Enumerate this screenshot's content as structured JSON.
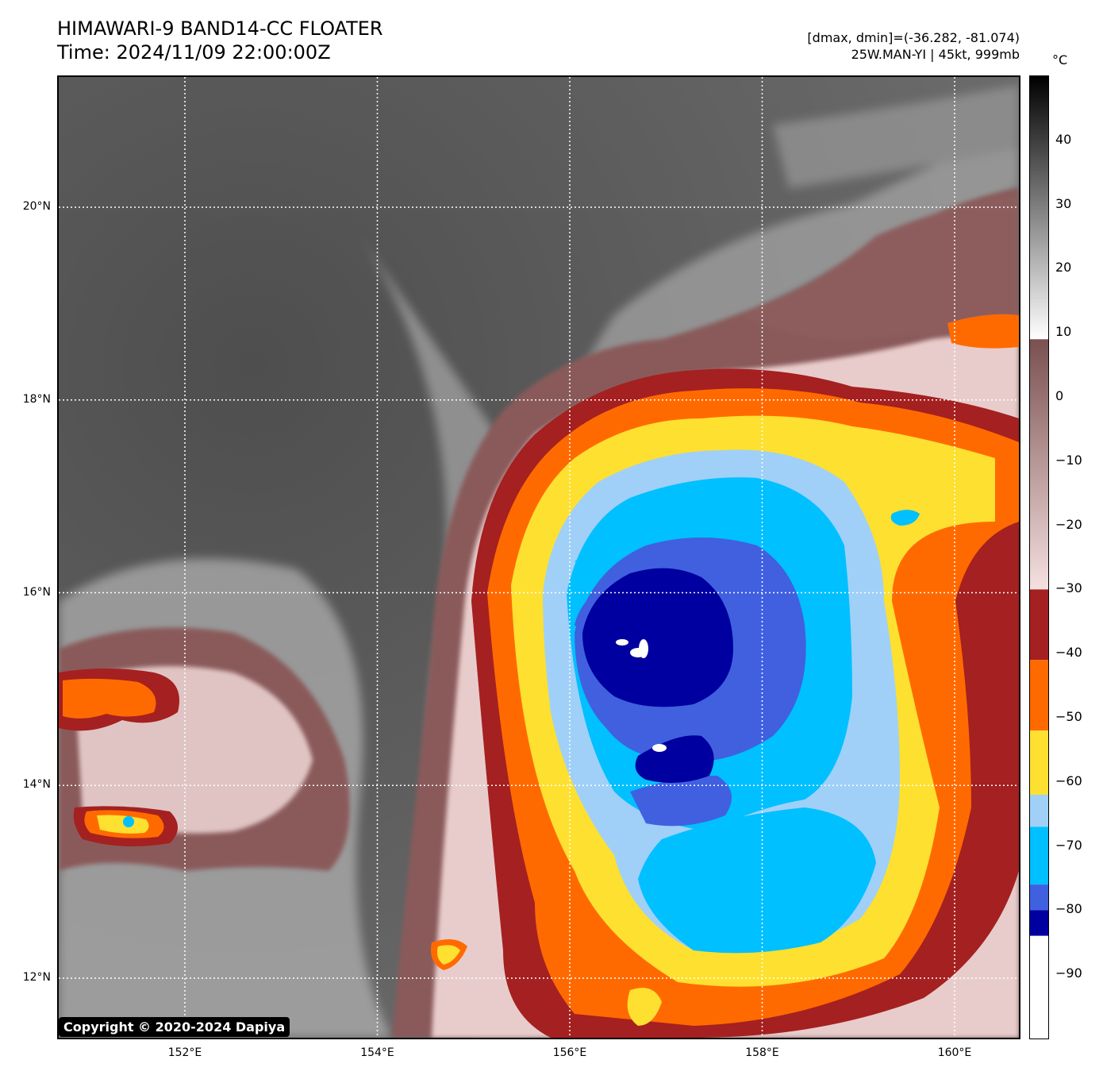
{
  "title": {
    "line1": "HIMAWARI-9 BAND14-CC FLOATER",
    "line2": "Time: 2024/11/09 22:00:00Z"
  },
  "info": {
    "line1": "[dmax, dmin]=(-36.282, -81.074)",
    "line2": "25W.MAN-YI | 45kt, 999mb"
  },
  "map": {
    "lat_labels": [
      {
        "label": "20°N",
        "value": 20
      },
      {
        "label": "18°N",
        "value": 18
      },
      {
        "label": "16°N",
        "value": 16
      },
      {
        "label": "14°N",
        "value": 14
      },
      {
        "label": "12°N",
        "value": 12
      }
    ],
    "lon_labels": [
      {
        "label": "152°E",
        "value": 152
      },
      {
        "label": "154°E",
        "value": 154
      },
      {
        "label": "156°E",
        "value": 156
      },
      {
        "label": "158°E",
        "value": 158
      },
      {
        "label": "160°E",
        "value": 160
      }
    ],
    "gridlines": "dotted white"
  },
  "colorbar": {
    "unit": "°C",
    "tick_labels": [
      {
        "label": "40",
        "value": 40
      },
      {
        "label": "30",
        "value": 30
      },
      {
        "label": "20",
        "value": 20
      },
      {
        "label": "10",
        "value": 10
      },
      {
        "label": "0",
        "value": 0
      },
      {
        "label": "−10",
        "value": -10
      },
      {
        "label": "−20",
        "value": -20
      },
      {
        "label": "−30",
        "value": -30
      },
      {
        "label": "−40",
        "value": -40
      },
      {
        "label": "−50",
        "value": -50
      },
      {
        "label": "−60",
        "value": -60
      },
      {
        "label": "−70",
        "value": -70
      },
      {
        "label": "−80",
        "value": -80
      },
      {
        "label": "−90",
        "value": -90
      }
    ],
    "range": [
      -100,
      50
    ],
    "colors": {
      "gray_top": "#000000",
      "gray_bottom": "#ffffff",
      "brown_top": "#7a5050",
      "brown_bottom": "#f5e0e0",
      "dark_red": "#a52020",
      "orange": "#ff6a00",
      "yellow": "#fde030",
      "light_blue": "#a0d0f8",
      "sky_blue": "#00c0ff",
      "royal_blue": "#4060e0",
      "navy": "#0000a0",
      "white": "#ffffff"
    }
  },
  "storm_colors": {
    "cloud_gray": "#8a8a8a",
    "cloud_brown": "#8a5a5a",
    "cloud_pink": "#e8cccc"
  },
  "copyright": "Copyright © 2020-2024 Dapiya"
}
